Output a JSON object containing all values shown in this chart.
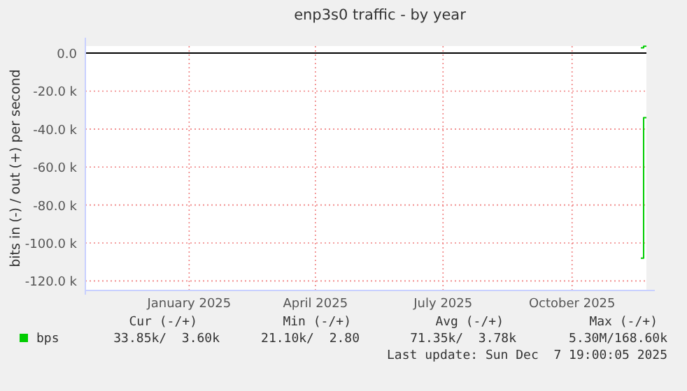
{
  "chart_data": {
    "type": "step",
    "title": "enp3s0 traffic - by year",
    "ylabel": "bits in (-) / out (+) per second",
    "xlim": [
      "2024-11-02",
      "2025-12-07"
    ],
    "xticks": [
      {
        "value": "2025-01-15",
        "label": "January 2025"
      },
      {
        "value": "2025-04-15",
        "label": "April 2025"
      },
      {
        "value": "2025-07-15",
        "label": "July 2025"
      },
      {
        "value": "2025-10-15",
        "label": "October 2025"
      }
    ],
    "ylim": [
      -125000,
      3700
    ],
    "yticks": [
      {
        "value": -120000,
        "label": "-120.0 k"
      },
      {
        "value": -100000,
        "label": "-100.0 k"
      },
      {
        "value": -80000,
        "label": "-80.0 k"
      },
      {
        "value": -60000,
        "label": "-60.0 k"
      },
      {
        "value": -40000,
        "label": "-40.0 k"
      },
      {
        "value": -20000,
        "label": "-20.0 k"
      },
      {
        "value": 0,
        "label": "0.0"
      }
    ],
    "grid": true,
    "legend": "bottom left",
    "ref_lines": [
      {
        "axis": "y",
        "value": 0,
        "color": "#000000"
      }
    ],
    "series": [
      {
        "name": "bps",
        "color": "#00cc00",
        "x": [
          "2025-12-03",
          "2025-12-05",
          "2025-12-07"
        ],
        "values": [
          -108000,
          -34000,
          -34000
        ]
      },
      {
        "color": "#00cc00",
        "x": [
          "2025-12-03",
          "2025-12-05",
          "2025-12-07"
        ],
        "values": [
          2800,
          3600,
          3600
        ]
      }
    ],
    "annotations": [
      "Cur (-/+)",
      "Min (-/+)",
      "Avg (-/+)",
      "Max (-/+)",
      "33.85k/  3.60k",
      "21.10k/  2.80",
      "71.35k/  3.78k",
      "5.30M/168.60k",
      "Last update: Sun Dec  7 19:00:05 2025"
    ]
  }
}
